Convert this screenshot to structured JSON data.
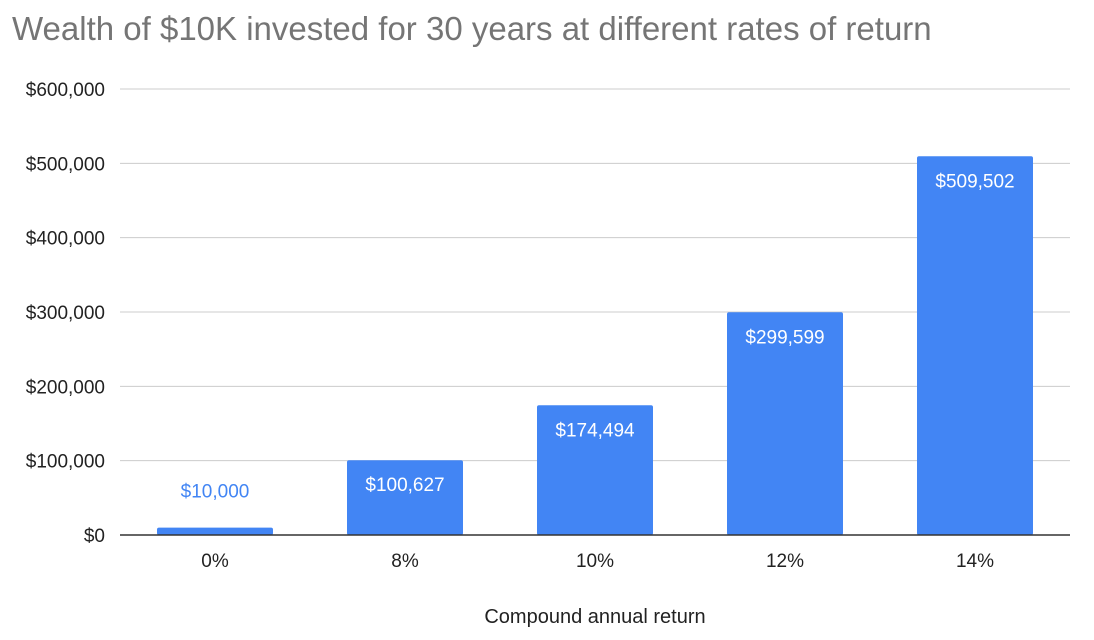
{
  "chart_data": {
    "type": "bar",
    "title": "Wealth of $10K invested for 30 years at different rates of return",
    "xlabel": "Compound annual return",
    "ylabel": "",
    "categories": [
      "0%",
      "8%",
      "10%",
      "12%",
      "14%"
    ],
    "values": [
      10000,
      100627,
      174494,
      299599,
      509502
    ],
    "value_labels": [
      "$10,000",
      "$100,627",
      "$174,494",
      "$299,599",
      "$509,502"
    ],
    "ylim": [
      0,
      600000
    ],
    "yticks": [
      0,
      100000,
      200000,
      300000,
      400000,
      500000,
      600000
    ],
    "ytick_labels": [
      "$0",
      "$100,000",
      "$200,000",
      "$300,000",
      "$400,000",
      "$500,000",
      "$600,000"
    ],
    "grid": true,
    "legend": "none",
    "colors": {
      "bar": "#4285f4",
      "label_inside": "#ffffff",
      "label_outside": "#4285f4",
      "grid": "#cccccc",
      "axis": "#333333",
      "title": "#757575",
      "text": "#222222"
    }
  }
}
